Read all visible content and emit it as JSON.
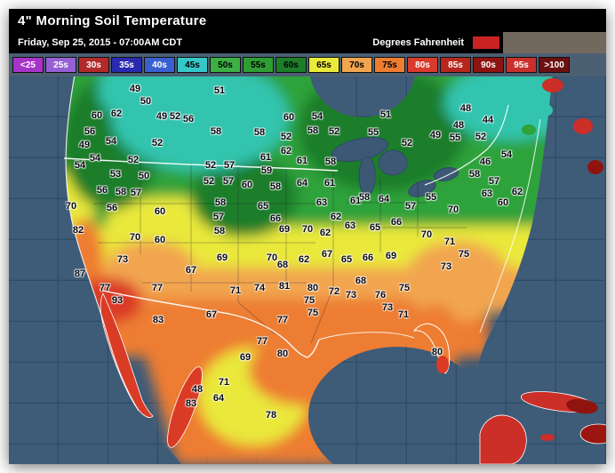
{
  "window": {
    "title": "4\" Morning Soil Temperature"
  },
  "header": {
    "date_line": "Friday, Sep 25, 2015 - 07:00AM CDT",
    "units_label": "Degrees Fahrenheit"
  },
  "legend": {
    "items": [
      {
        "label": "<25",
        "color": "#a733c9",
        "text": "#ffffff"
      },
      {
        "label": "25s",
        "color": "#975fd4",
        "text": "#ffffff"
      },
      {
        "label": "30s",
        "color": "#b22a2a",
        "text": "#ffffff"
      },
      {
        "label": "35s",
        "color": "#2a2ab0",
        "text": "#ffffff"
      },
      {
        "label": "40s",
        "color": "#3a5fd0",
        "text": "#ffffff"
      },
      {
        "label": "45s",
        "color": "#35c8c8",
        "text": "#000000"
      },
      {
        "label": "50s",
        "color": "#3cb043",
        "text": "#000000"
      },
      {
        "label": "55s",
        "color": "#2e9e33",
        "text": "#000000"
      },
      {
        "label": "60s",
        "color": "#1d7e2a",
        "text": "#000000"
      },
      {
        "label": "65s",
        "color": "#eaea3a",
        "text": "#000000"
      },
      {
        "label": "70s",
        "color": "#f2a54f",
        "text": "#000000"
      },
      {
        "label": "75s",
        "color": "#ed7d31",
        "text": "#000000"
      },
      {
        "label": "80s",
        "color": "#d93a2b",
        "text": "#ffffff"
      },
      {
        "label": "85s",
        "color": "#b5271c",
        "text": "#ffffff"
      },
      {
        "label": "90s",
        "color": "#8f1410",
        "text": "#ffffff"
      },
      {
        "label": "95s",
        "color": "#c9302c",
        "text": "#ffffff"
      },
      {
        "label": ">100",
        "color": "#6b0f0f",
        "text": "#ffffff"
      }
    ]
  },
  "map": {
    "region_colors": {
      "teal_40s": "#32c4ae",
      "green_50s": "#2fa23a",
      "dark_green": "#1d7e2a",
      "yellow_60s": "#e9e83b",
      "peach_70s": "#f2a54f",
      "orange_75s": "#ed7d31",
      "red_80s": "#da3b25",
      "dark_red_90s": "#8f1410",
      "ocean": "#3e5b78",
      "grid": "#2f4c68",
      "border": "#ffffff"
    },
    "stations": [
      [
        49,
        142,
        14
      ],
      [
        50,
        154,
        28
      ],
      [
        51,
        237,
        16
      ],
      [
        60,
        99,
        44
      ],
      [
        62,
        121,
        42
      ],
      [
        49,
        172,
        45
      ],
      [
        52,
        187,
        45
      ],
      [
        56,
        202,
        48
      ],
      [
        60,
        315,
        46
      ],
      [
        54,
        347,
        45
      ],
      [
        51,
        424,
        43
      ],
      [
        48,
        514,
        36
      ],
      [
        44,
        539,
        49
      ],
      [
        48,
        506,
        55
      ],
      [
        56,
        91,
        62
      ],
      [
        54,
        115,
        73
      ],
      [
        52,
        167,
        75
      ],
      [
        58,
        233,
        62
      ],
      [
        58,
        282,
        63
      ],
      [
        52,
        312,
        68
      ],
      [
        58,
        342,
        61
      ],
      [
        52,
        366,
        62
      ],
      [
        55,
        410,
        63
      ],
      [
        49,
        480,
        66
      ],
      [
        55,
        502,
        69
      ],
      [
        52,
        531,
        68
      ],
      [
        49,
        85,
        77
      ],
      [
        52,
        448,
        75
      ],
      [
        54,
        97,
        92
      ],
      [
        52,
        140,
        94
      ],
      [
        52,
        227,
        100
      ],
      [
        57,
        248,
        100
      ],
      [
        61,
        289,
        91
      ],
      [
        62,
        312,
        84
      ],
      [
        61,
        330,
        95
      ],
      [
        58,
        362,
        96
      ],
      [
        46,
        536,
        96
      ],
      [
        54,
        560,
        88
      ],
      [
        59,
        290,
        106
      ],
      [
        58,
        524,
        110
      ],
      [
        57,
        546,
        118
      ],
      [
        63,
        538,
        132
      ],
      [
        60,
        556,
        142
      ],
      [
        62,
        572,
        130
      ],
      [
        53,
        120,
        110
      ],
      [
        50,
        152,
        112
      ],
      [
        52,
        225,
        118
      ],
      [
        57,
        247,
        118
      ],
      [
        60,
        268,
        122
      ],
      [
        64,
        330,
        120
      ],
      [
        58,
        300,
        124
      ],
      [
        61,
        361,
        120
      ],
      [
        54,
        80,
        100
      ],
      [
        56,
        105,
        128
      ],
      [
        58,
        126,
        130
      ],
      [
        57,
        143,
        131
      ],
      [
        58,
        400,
        136
      ],
      [
        64,
        422,
        138
      ],
      [
        57,
        452,
        146
      ],
      [
        70,
        500,
        150
      ],
      [
        55,
        475,
        136
      ],
      [
        61,
        390,
        140
      ],
      [
        70,
        70,
        146
      ],
      [
        56,
        116,
        148
      ],
      [
        60,
        170,
        152
      ],
      [
        58,
        238,
        142
      ],
      [
        57,
        236,
        158
      ],
      [
        65,
        286,
        146
      ],
      [
        63,
        352,
        142
      ],
      [
        62,
        368,
        158
      ],
      [
        66,
        300,
        160
      ],
      [
        82,
        78,
        173
      ],
      [
        70,
        142,
        181
      ],
      [
        60,
        170,
        184
      ],
      [
        58,
        237,
        174
      ],
      [
        69,
        310,
        172
      ],
      [
        70,
        336,
        172
      ],
      [
        62,
        356,
        176
      ],
      [
        63,
        384,
        168
      ],
      [
        65,
        412,
        170
      ],
      [
        66,
        436,
        164
      ],
      [
        70,
        470,
        178
      ],
      [
        71,
        496,
        186
      ],
      [
        75,
        512,
        200
      ],
      [
        73,
        128,
        206
      ],
      [
        87,
        80,
        222
      ],
      [
        77,
        108,
        238
      ],
      [
        67,
        205,
        218
      ],
      [
        69,
        240,
        204
      ],
      [
        70,
        296,
        204
      ],
      [
        68,
        308,
        212
      ],
      [
        62,
        332,
        206
      ],
      [
        67,
        358,
        200
      ],
      [
        65,
        380,
        206
      ],
      [
        66,
        404,
        204
      ],
      [
        69,
        430,
        202
      ],
      [
        73,
        492,
        214
      ],
      [
        93,
        122,
        252
      ],
      [
        77,
        167,
        238
      ],
      [
        83,
        168,
        274
      ],
      [
        67,
        228,
        268
      ],
      [
        71,
        255,
        241
      ],
      [
        74,
        282,
        238
      ],
      [
        81,
        310,
        236
      ],
      [
        80,
        342,
        238
      ],
      [
        72,
        366,
        242
      ],
      [
        75,
        338,
        252
      ],
      [
        73,
        385,
        246
      ],
      [
        68,
        396,
        230
      ],
      [
        76,
        418,
        246
      ],
      [
        75,
        445,
        238
      ],
      [
        73,
        426,
        260
      ],
      [
        71,
        444,
        268
      ],
      [
        75,
        342,
        266
      ],
      [
        77,
        308,
        274
      ],
      [
        80,
        482,
        310
      ],
      [
        69,
        266,
        316
      ],
      [
        80,
        308,
        312
      ],
      [
        77,
        285,
        298
      ],
      [
        71,
        242,
        344
      ],
      [
        64,
        236,
        362
      ],
      [
        48,
        212,
        352
      ],
      [
        83,
        205,
        368
      ],
      [
        78,
        295,
        381
      ]
    ]
  }
}
